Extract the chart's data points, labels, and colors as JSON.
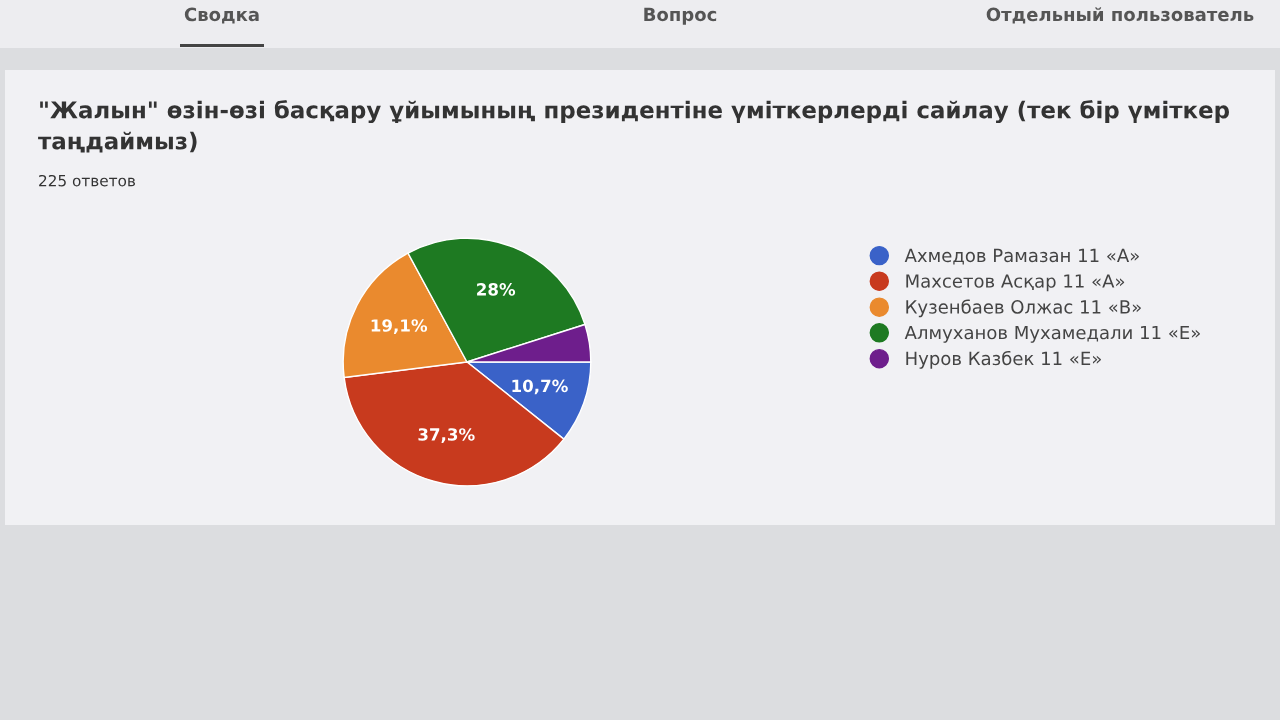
{
  "chart_data": {
    "type": "pie",
    "title": "\"Жалын\" өзін-өзі басқару ұйымының президентіне үміткерлерді сайлау (тек бір үміткер таңдаймыз)",
    "subtitle": "225 ответов",
    "annotations": [
      "Сводка",
      "Вопрос",
      "Отдельный пользователь"
    ],
    "categories": [
      "Ахмедов Рамазан 11 «А»",
      "Махсетов Асқар 11 «А»",
      "Кузенбаев Олжас 11 «В»",
      "Алмуханов Мухамедали 11 «Е»",
      "Нуров Казбек 11 «Е»"
    ],
    "values": [
      10.7,
      37.3,
      19.1,
      28,
      4.9
    ],
    "value_labels": [
      "10,7%",
      "37,3%",
      "19,1%",
      "28%",
      null
    ],
    "colors": [
      "#3a62c8",
      "#c83a1e",
      "#ea8a2e",
      "#1e7a22",
      "#6e1e8c"
    ],
    "legend": "right"
  }
}
